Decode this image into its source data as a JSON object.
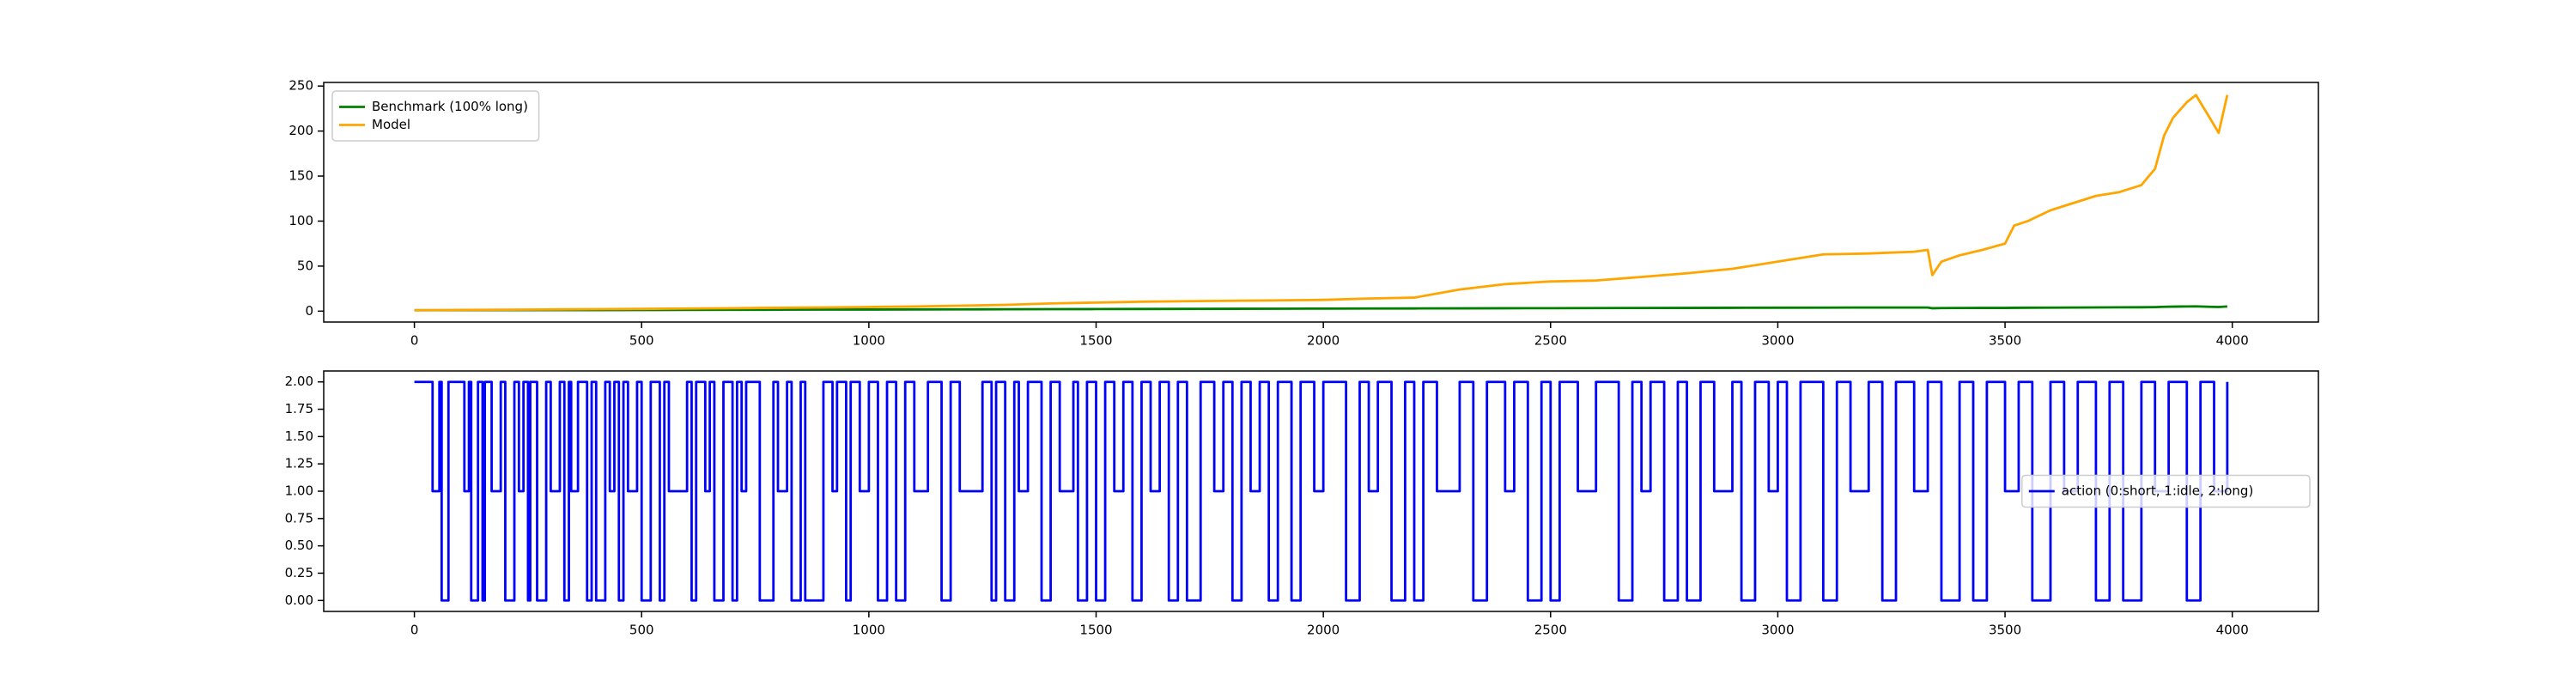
{
  "chart_data": [
    {
      "type": "line",
      "x": [
        0,
        100,
        200,
        300,
        400,
        500,
        600,
        700,
        800,
        900,
        1000,
        1100,
        1200,
        1300,
        1400,
        1500,
        1600,
        1700,
        1800,
        1900,
        2000,
        2100,
        2200,
        2300,
        2400,
        2500,
        2600,
        2700,
        2800,
        2900,
        3000,
        3100,
        3200,
        3300,
        3330,
        3340,
        3360,
        3400,
        3450,
        3500,
        3520,
        3550,
        3600,
        3650,
        3700,
        3750,
        3800,
        3830,
        3850,
        3870,
        3900,
        3920,
        3950,
        3970,
        3989
      ],
      "series": [
        {
          "name": "Benchmark (100% long)",
          "color": "#008000",
          "values": [
            1,
            1.05,
            1.1,
            1.15,
            1.2,
            1.3,
            1.4,
            1.5,
            1.6,
            1.7,
            1.8,
            1.9,
            2,
            2.1,
            2.2,
            2.3,
            2.4,
            2.5,
            2.6,
            2.7,
            2.8,
            2.9,
            3,
            3.1,
            3.2,
            3.3,
            3.4,
            3.5,
            3.6,
            3.7,
            3.8,
            3.9,
            4,
            4,
            4,
            3.2,
            3.4,
            3.5,
            3.6,
            3.6,
            3.7,
            3.8,
            3.9,
            4,
            4.1,
            4.2,
            4.3,
            4.5,
            4.8,
            5,
            5.2,
            5.3,
            4.8,
            4.6,
            5.2
          ]
        },
        {
          "name": "Model",
          "color": "#ffa500",
          "values": [
            1,
            1.3,
            1.6,
            1.9,
            2.2,
            2.5,
            2.9,
            3.3,
            3.7,
            4.1,
            4.6,
            5.2,
            6,
            7,
            8.5,
            9.5,
            10.5,
            11,
            11.5,
            12,
            12.5,
            14,
            15,
            24,
            30,
            33,
            34,
            38,
            42,
            47,
            55,
            63,
            64,
            66,
            68,
            40,
            55,
            62,
            68,
            75,
            95,
            100,
            112,
            120,
            128,
            132,
            140,
            158,
            195,
            215,
            232,
            240,
            215,
            198,
            240
          ]
        }
      ],
      "xlim": [
        -199.5,
        4189.5
      ],
      "xticks": [
        0,
        500,
        1000,
        1500,
        2000,
        2500,
        3000,
        3500,
        4000
      ],
      "ylim": [
        -12.1,
        254
      ],
      "yticks": [
        0,
        50,
        100,
        150,
        200,
        250
      ],
      "legend": "upper left"
    },
    {
      "type": "line",
      "drawstyle": "steps-post",
      "x": [
        0,
        40,
        55,
        60,
        75,
        110,
        120,
        125,
        140,
        150,
        155,
        170,
        190,
        200,
        220,
        230,
        240,
        250,
        255,
        270,
        290,
        300,
        320,
        330,
        340,
        345,
        360,
        380,
        390,
        400,
        420,
        430,
        440,
        450,
        460,
        470,
        490,
        500,
        520,
        540,
        550,
        560,
        600,
        610,
        620,
        640,
        650,
        660,
        680,
        700,
        710,
        720,
        730,
        760,
        790,
        800,
        820,
        830,
        850,
        860,
        900,
        920,
        930,
        950,
        960,
        980,
        1000,
        1020,
        1040,
        1060,
        1080,
        1100,
        1130,
        1160,
        1180,
        1200,
        1250,
        1270,
        1280,
        1300,
        1320,
        1330,
        1350,
        1380,
        1400,
        1420,
        1450,
        1460,
        1480,
        1500,
        1520,
        1540,
        1560,
        1580,
        1600,
        1620,
        1640,
        1660,
        1680,
        1700,
        1730,
        1760,
        1780,
        1800,
        1820,
        1840,
        1860,
        1880,
        1900,
        1930,
        1950,
        1980,
        2000,
        2050,
        2080,
        2100,
        2120,
        2150,
        2180,
        2200,
        2220,
        2250,
        2300,
        2330,
        2360,
        2400,
        2420,
        2450,
        2480,
        2500,
        2520,
        2560,
        2600,
        2650,
        2680,
        2700,
        2720,
        2750,
        2780,
        2800,
        2830,
        2860,
        2900,
        2920,
        2950,
        2980,
        3000,
        3020,
        3050,
        3100,
        3130,
        3160,
        3200,
        3230,
        3260,
        3300,
        3330,
        3360,
        3400,
        3430,
        3460,
        3500,
        3530,
        3560,
        3600,
        3630,
        3660,
        3700,
        3730,
        3760,
        3800,
        3830,
        3860,
        3900,
        3930,
        3960,
        3989
      ],
      "series": [
        {
          "name": "action (0:short, 1:idle, 2:long)",
          "color": "#0000ff",
          "values": [
            2,
            1,
            2,
            0,
            2,
            1,
            2,
            0,
            2,
            0,
            2,
            1,
            2,
            0,
            2,
            1,
            2,
            0,
            2,
            0,
            2,
            1,
            2,
            0,
            2,
            1,
            2,
            0,
            2,
            0,
            2,
            1,
            2,
            0,
            2,
            1,
            2,
            0,
            2,
            0,
            2,
            1,
            2,
            0,
            2,
            1,
            2,
            0,
            2,
            0,
            2,
            1,
            2,
            0,
            2,
            1,
            2,
            0,
            2,
            0,
            2,
            1,
            2,
            0,
            2,
            1,
            2,
            0,
            2,
            0,
            2,
            1,
            2,
            0,
            2,
            1,
            2,
            0,
            2,
            0,
            2,
            1,
            2,
            0,
            2,
            1,
            2,
            0,
            2,
            0,
            2,
            1,
            2,
            0,
            2,
            1,
            2,
            0,
            2,
            0,
            2,
            1,
            2,
            0,
            2,
            1,
            2,
            0,
            2,
            0,
            2,
            1,
            2,
            0,
            2,
            1,
            2,
            0,
            2,
            0,
            2,
            1,
            2,
            0,
            2,
            1,
            2,
            0,
            2,
            0,
            2,
            1,
            2,
            0,
            2,
            1,
            2,
            0,
            2,
            0,
            2,
            1,
            2,
            0,
            2,
            1,
            2,
            0,
            2,
            0,
            2,
            1,
            2,
            0,
            2,
            1,
            2,
            0,
            2,
            0,
            2,
            1,
            2,
            0,
            2,
            1,
            2,
            0,
            2,
            0,
            2,
            1,
            2,
            0,
            2,
            1,
            2
          ]
        }
      ],
      "xlim": [
        -199.5,
        4189.5
      ],
      "xticks": [
        0,
        500,
        1000,
        1500,
        2000,
        2500,
        3000,
        3500,
        4000
      ],
      "ylim": [
        -0.1,
        2.1
      ],
      "yticks": [
        {
          "value": 0,
          "label": "0.00"
        },
        {
          "value": 0.25,
          "label": "0.25"
        },
        {
          "value": 0.5,
          "label": "0.50"
        },
        {
          "value": 0.75,
          "label": "0.75"
        },
        {
          "value": 1,
          "label": "1.00"
        },
        {
          "value": 1.25,
          "label": "1.25"
        },
        {
          "value": 1.5,
          "label": "1.50"
        },
        {
          "value": 1.75,
          "label": "1.75"
        },
        {
          "value": 2,
          "label": "2.00"
        }
      ],
      "legend": "center right"
    }
  ]
}
